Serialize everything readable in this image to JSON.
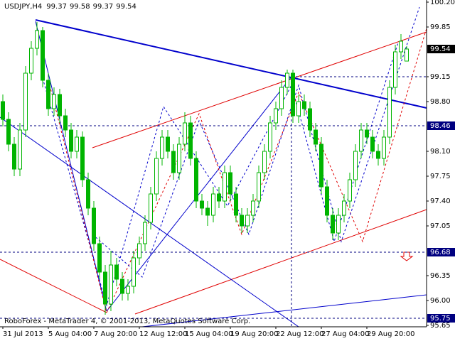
{
  "chart_data": {
    "type": "candlestick",
    "title": "USDJPY,H4",
    "footer": "RoboForex - MetaTrader 4, © 2001-2013, MetaQuotes Software Corp.",
    "color": "#00b400",
    "categories": [
      "31 Jul 2013",
      null,
      null,
      null,
      null,
      null,
      null,
      null,
      "5 Aug 04:00",
      null,
      null,
      null,
      null,
      null,
      null,
      null,
      "7 Aug 20:00",
      null,
      null,
      null,
      null,
      null,
      null,
      null,
      "12 Aug 12:00",
      null,
      null,
      null,
      null,
      null,
      null,
      null,
      "15 Aug 04:00",
      null,
      null,
      null,
      null,
      null,
      null,
      null,
      "19 Aug 20:00",
      null,
      null,
      null,
      null,
      null,
      null,
      null,
      "22 Aug 12:00",
      null,
      null,
      null,
      null,
      null,
      null,
      null,
      "27 Aug 04:00",
      null,
      null,
      null,
      null,
      null,
      null,
      null,
      "29 Aug 20:00",
      null,
      null,
      null,
      null,
      null,
      null,
      null
    ],
    "open": [
      98.8,
      98.55,
      98.2,
      97.85,
      98.4,
      99.2,
      99.55,
      99.8,
      99.1,
      98.7,
      98.9,
      98.6,
      98.4,
      98.1,
      98.3,
      97.7,
      97.3,
      96.8,
      96.4,
      95.95,
      96.5,
      96.3,
      96.1,
      96.2,
      96.6,
      96.8,
      97.1,
      97.5,
      98.0,
      98.3,
      98.1,
      97.8,
      98.2,
      98.5,
      98.0,
      97.4,
      97.3,
      97.2,
      97.5,
      97.4,
      97.8,
      97.5,
      97.2,
      97.05,
      97.2,
      97.4,
      97.8,
      98.1,
      98.5,
      98.7,
      99.0,
      99.2,
      98.6,
      98.8,
      98.7,
      98.4,
      98.2,
      97.6,
      97.2,
      96.95,
      97.2,
      97.4,
      97.7,
      98.1,
      98.4,
      98.3,
      98.1,
      98.0,
      98.3,
      99.0,
      99.5,
      99.37
    ],
    "high": [
      98.9,
      98.65,
      98.3,
      98.5,
      99.3,
      99.65,
      99.92,
      99.85,
      99.2,
      99.0,
      98.98,
      98.7,
      98.5,
      98.4,
      98.38,
      97.8,
      97.4,
      96.9,
      96.5,
      96.7,
      96.6,
      96.4,
      96.3,
      96.7,
      96.9,
      97.2,
      97.6,
      98.1,
      98.4,
      98.4,
      98.2,
      98.3,
      98.65,
      98.6,
      98.1,
      97.5,
      97.4,
      97.6,
      97.6,
      97.9,
      97.9,
      97.6,
      97.3,
      97.3,
      97.5,
      97.9,
      98.2,
      98.6,
      98.8,
      99.1,
      99.25,
      99.25,
      98.9,
      98.9,
      98.8,
      98.5,
      98.3,
      97.7,
      97.3,
      97.3,
      97.5,
      97.8,
      98.2,
      98.5,
      98.5,
      98.4,
      98.2,
      98.4,
      99.1,
      99.6,
      99.75,
      99.58
    ],
    "low": [
      98.45,
      98.1,
      97.75,
      97.75,
      98.3,
      99.1,
      99.45,
      99.0,
      98.6,
      98.6,
      98.5,
      98.3,
      98.0,
      98.0,
      97.6,
      97.2,
      96.7,
      96.3,
      95.8,
      95.85,
      96.2,
      96.0,
      96.0,
      96.1,
      96.5,
      96.7,
      97.0,
      97.4,
      97.9,
      98.0,
      97.7,
      97.7,
      98.1,
      97.9,
      97.3,
      97.2,
      97.05,
      97.1,
      97.3,
      97.3,
      97.4,
      97.1,
      96.95,
      96.95,
      97.1,
      97.3,
      97.7,
      98.0,
      98.4,
      98.6,
      98.9,
      98.5,
      98.5,
      98.6,
      98.3,
      98.1,
      97.5,
      97.1,
      96.85,
      96.85,
      97.1,
      97.3,
      97.6,
      98.0,
      98.2,
      98.0,
      97.9,
      97.9,
      98.2,
      98.9,
      99.4,
      99.37
    ],
    "close": [
      98.55,
      98.2,
      97.85,
      98.4,
      99.2,
      99.55,
      99.8,
      99.1,
      98.7,
      98.9,
      98.6,
      98.4,
      98.1,
      98.3,
      97.7,
      97.3,
      96.8,
      96.4,
      95.95,
      96.5,
      96.3,
      96.1,
      96.2,
      96.6,
      96.8,
      97.1,
      97.5,
      98.0,
      98.3,
      98.1,
      97.8,
      98.2,
      98.5,
      98.0,
      97.4,
      97.3,
      97.2,
      97.5,
      97.4,
      97.8,
      97.5,
      97.2,
      97.05,
      97.2,
      97.4,
      97.8,
      98.1,
      98.5,
      98.7,
      99.0,
      99.2,
      98.6,
      98.8,
      98.7,
      98.4,
      98.2,
      97.6,
      97.2,
      96.95,
      97.2,
      97.4,
      97.7,
      98.1,
      98.4,
      98.3,
      98.1,
      98.0,
      98.3,
      99.0,
      99.5,
      99.65,
      99.54
    ],
    "levels": [
      98.46,
      96.68,
      95.75
    ],
    "ylim": [
      95.63,
      100.23
    ],
    "yticks": [
      95.65,
      {
        "value": 96.0,
        "label": "96.00"
      },
      96.35,
      97.05,
      {
        "value": 97.4,
        "label": "97.40"
      },
      97.75,
      {
        "value": 98.1,
        "label": "98.10"
      },
      {
        "value": 98.8,
        "label": "98.80"
      },
      99.15,
      99.85,
      {
        "value": 100.2,
        "label": "100.20"
      }
    ]
  }
}
